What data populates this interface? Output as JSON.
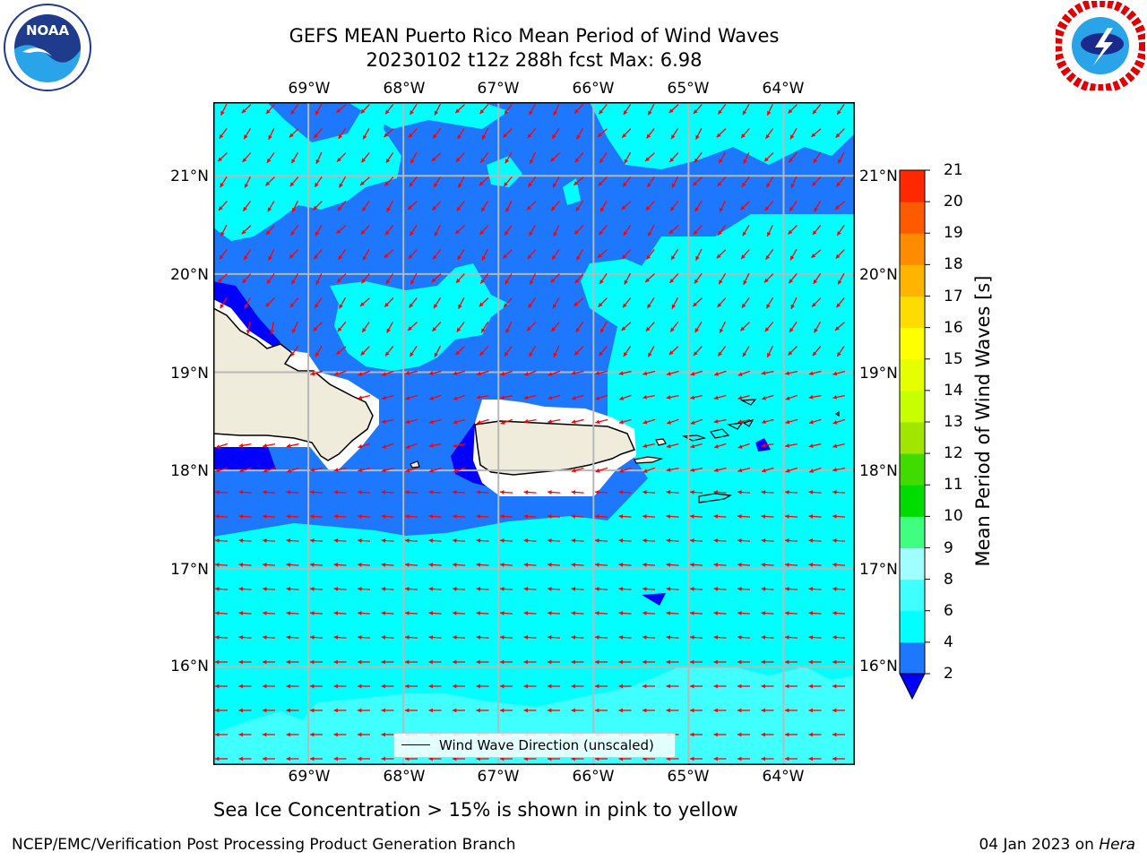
{
  "header": {
    "title_line1": "GEFS MEAN Puerto Rico Mean Period of Wind Waves",
    "title_line2": "20230102 t12z 288h fcst   Max: 6.98"
  },
  "logos": {
    "left": "noaa-logo",
    "right": "national-weather-service-logo"
  },
  "axes": {
    "lon_ticks": [
      "69°W",
      "68°W",
      "67°W",
      "66°W",
      "65°W",
      "64°W"
    ],
    "lat_ticks": [
      "21°N",
      "20°N",
      "19°N",
      "18°N",
      "17°N",
      "16°N"
    ]
  },
  "map": {
    "lon_range": [
      -70.0,
      -63.25
    ],
    "lat_range": [
      15.0,
      21.75
    ],
    "lon_grid": [
      -69,
      -68,
      -67,
      -66,
      -65,
      -64
    ],
    "lat_grid": [
      21,
      20,
      19,
      18,
      17,
      16
    ],
    "gridline_color": "#b8b8b8",
    "land_color": "#efecdc",
    "arrow_color": "#ff0000",
    "wave_direction_dominant": "from east-northeast"
  },
  "legend": {
    "label": "Wind Wave Direction (unscaled)"
  },
  "colorbar": {
    "label": "Mean Period of Wind Waves [s]",
    "ticks": [
      "2",
      "4",
      "6",
      "8",
      "9",
      "10",
      "11",
      "12",
      "13",
      "14",
      "15",
      "16",
      "17",
      "18",
      "19",
      "20",
      "21"
    ],
    "under_color": "#0000ff",
    "colors": [
      "#1e78ff",
      "#00ffff",
      "#40ffff",
      "#a0ffff",
      "#40ff80",
      "#00dc00",
      "#40dc00",
      "#a0e600",
      "#c8ff00",
      "#e6ff00",
      "#ffff00",
      "#ffdc00",
      "#ffb400",
      "#ff8c00",
      "#ff5a00",
      "#ff2800"
    ]
  },
  "note": "Sea Ice Concentration > 15% is shown in pink to yellow",
  "footer": {
    "left": "NCEP/EMC/Verification Post Processing Product Generation Branch",
    "right_date": "04 Jan 2023 on ",
    "right_machine": "Hera"
  }
}
